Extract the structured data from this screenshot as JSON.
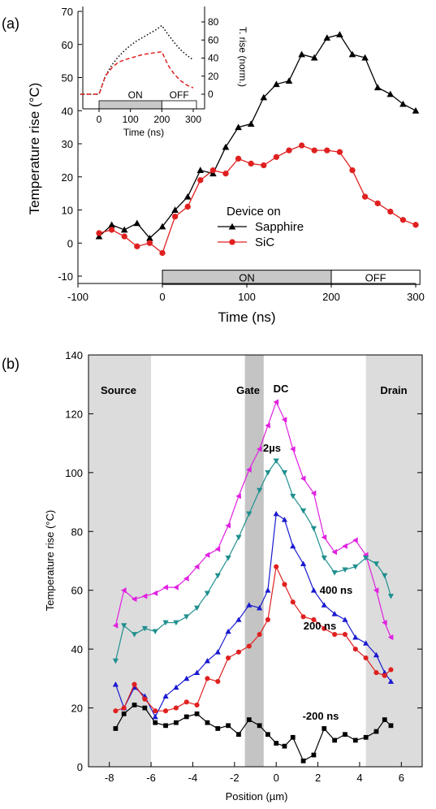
{
  "chart_data": [
    {
      "panel_label": "(a)",
      "type": "line",
      "xlabel": "Time (ns)",
      "ylabel": "Temperature rise (°C)",
      "xlim": [
        -100,
        300
      ],
      "ylim": [
        -12,
        70
      ],
      "xticks": [
        -100,
        0,
        100,
        200,
        300
      ],
      "yticks": [
        -10,
        0,
        10,
        20,
        30,
        40,
        50,
        60,
        70
      ],
      "legend_title": "Device on",
      "legend_placement": "center-right",
      "pulse_bar": {
        "on_label": "ON",
        "off_label": "OFF",
        "on_range": [
          0,
          200
        ],
        "off_range": [
          200,
          305
        ]
      },
      "series": [
        {
          "name": "Sapphire",
          "color": "#000000",
          "marker": "triangle-up",
          "x": [
            -75,
            -60,
            -45,
            -30,
            -15,
            0,
            15,
            30,
            45,
            60,
            75,
            90,
            105,
            120,
            135,
            150,
            165,
            180,
            195,
            210,
            225,
            240,
            255,
            270,
            285,
            300
          ],
          "y": [
            2,
            5.5,
            4,
            6,
            1.5,
            5,
            10,
            14,
            22,
            21,
            29,
            35,
            36,
            44,
            48,
            49,
            57,
            56,
            62,
            63,
            57,
            56,
            47,
            45,
            42,
            40
          ]
        },
        {
          "name": "SiC",
          "color": "#e02020",
          "marker": "circle",
          "x": [
            -75,
            -60,
            -45,
            -30,
            -15,
            0,
            15,
            30,
            45,
            60,
            75,
            90,
            105,
            120,
            135,
            150,
            165,
            180,
            195,
            210,
            225,
            240,
            255,
            270,
            285,
            300
          ],
          "y": [
            3,
            4,
            2,
            -1,
            0,
            -3,
            8,
            11,
            19,
            22,
            21,
            25.5,
            24,
            23.5,
            26,
            28,
            29.5,
            28,
            28,
            27.5,
            22,
            14,
            12,
            9.5,
            7,
            5.5
          ]
        }
      ],
      "inset": {
        "xlabel": "Time (ns)",
        "ylabel": "T. rise (norm.)",
        "xlim": [
          -60,
          310
        ],
        "ylim": [
          -15,
          90
        ],
        "xticks": [
          0,
          100,
          200,
          300
        ],
        "yticks": [
          0,
          20,
          40,
          60,
          80
        ],
        "pulse_bar": {
          "on_label": "ON",
          "off_label": "OFF"
        },
        "series": [
          {
            "color": "#000000",
            "style": "dotted",
            "x": [
              -60,
              -40,
              -20,
              0,
              20,
              40,
              60,
              80,
              100,
              120,
              140,
              160,
              180,
              200,
              220,
              240,
              260,
              280,
              300
            ],
            "y": [
              0,
              0,
              0,
              0,
              20,
              32,
              41,
              48,
              54,
              59,
              63,
              67,
              71,
              76,
              66,
              57,
              49,
              43,
              38
            ]
          },
          {
            "color": "#e02020",
            "style": "dashed",
            "x": [
              -60,
              -40,
              -20,
              0,
              20,
              40,
              60,
              80,
              100,
              120,
              140,
              160,
              180,
              200,
              220,
              240,
              260,
              280,
              300
            ],
            "y": [
              0,
              0,
              0,
              0,
              20,
              29,
              35,
              38,
              40,
              42,
              44,
              45,
              46,
              47,
              32,
              22,
              15,
              10,
              7
            ]
          }
        ]
      }
    },
    {
      "panel_label": "(b)",
      "type": "line",
      "xlabel": "Position (µm)",
      "ylabel": "Temperature rise (°C)",
      "xlim": [
        -9,
        7
      ],
      "ylim": [
        0,
        140
      ],
      "xticks": [
        -8,
        -6,
        -4,
        -2,
        0,
        2,
        4,
        6
      ],
      "yticks": [
        0,
        20,
        40,
        60,
        80,
        100,
        120,
        140
      ],
      "regions": [
        {
          "label": "Source",
          "range": [
            -9,
            -6
          ]
        },
        {
          "label": "Gate",
          "range": [
            -1.5,
            -0.6
          ]
        },
        {
          "label": "Drain",
          "range": [
            4.3,
            7
          ]
        }
      ],
      "series": [
        {
          "name": "DC",
          "color": "#e020e0",
          "marker": "triangle-left",
          "x": [
            -7.7,
            -7.3,
            -6.8,
            -6.3,
            -5.8,
            -5.3,
            -4.8,
            -4.3,
            -3.8,
            -3.3,
            -2.8,
            -2.3,
            -1.8,
            -1.3,
            -0.8,
            -0.4,
            0,
            0.4,
            0.8,
            1.3,
            1.8,
            2.3,
            2.8,
            3.3,
            3.8,
            4.3,
            4.8,
            5.2,
            5.5
          ],
          "y": [
            48,
            60,
            57,
            58,
            59,
            61,
            61,
            64,
            68,
            72,
            74,
            82,
            92,
            101,
            108,
            116,
            124,
            118,
            108,
            98,
            93,
            78,
            73,
            75,
            77,
            72,
            60,
            49,
            44
          ]
        },
        {
          "name": "2µs",
          "color": "#1f8f8f",
          "marker": "triangle-down",
          "x": [
            -7.7,
            -7.3,
            -6.8,
            -6.3,
            -5.8,
            -5.3,
            -4.8,
            -4.3,
            -3.8,
            -3.3,
            -2.8,
            -2.3,
            -1.8,
            -1.3,
            -0.8,
            -0.4,
            0,
            0.4,
            0.8,
            1.3,
            1.8,
            2.3,
            2.8,
            3.3,
            3.8,
            4.3,
            4.8,
            5.2,
            5.5
          ],
          "y": [
            36,
            48,
            45,
            47,
            46,
            49,
            49,
            51,
            54,
            59,
            65,
            71,
            78,
            86,
            94,
            100,
            104,
            100,
            92,
            87,
            81,
            71,
            66,
            67,
            68,
            71,
            69,
            65,
            58
          ]
        },
        {
          "name": "400 ns",
          "color": "#1a1ad0",
          "marker": "triangle-up",
          "x": [
            -7.7,
            -7.3,
            -6.8,
            -6.3,
            -5.8,
            -5.3,
            -4.8,
            -4.3,
            -3.8,
            -3.3,
            -2.8,
            -2.3,
            -1.8,
            -1.3,
            -0.8,
            -0.4,
            0,
            0.4,
            0.8,
            1.3,
            1.8,
            2.3,
            2.8,
            3.3,
            3.8,
            4.3,
            4.8,
            5.2,
            5.5
          ],
          "y": [
            28,
            20,
            27,
            24,
            17,
            24,
            27,
            30,
            32,
            36,
            39,
            46,
            50,
            55,
            54,
            60,
            86,
            84,
            75,
            69,
            60,
            55,
            52,
            50,
            44,
            42,
            38,
            32,
            29
          ]
        },
        {
          "name": "200 ns",
          "color": "#e02020",
          "marker": "circle",
          "x": [
            -7.7,
            -7.3,
            -6.8,
            -6.3,
            -5.8,
            -5.3,
            -4.8,
            -4.3,
            -3.8,
            -3.3,
            -2.8,
            -2.3,
            -1.8,
            -1.3,
            -0.8,
            -0.4,
            0,
            0.4,
            0.8,
            1.3,
            1.8,
            2.3,
            2.8,
            3.3,
            3.8,
            4.3,
            4.8,
            5.2,
            5.5
          ],
          "y": [
            19,
            20,
            28,
            23,
            19,
            19,
            20,
            22,
            21,
            30,
            29,
            37,
            39,
            41,
            45,
            50,
            68,
            62,
            56,
            51,
            50,
            47,
            45,
            45,
            40,
            37,
            32,
            31,
            33
          ]
        },
        {
          "name": "-200 ns",
          "color": "#000000",
          "marker": "square",
          "x": [
            -7.7,
            -7.3,
            -6.8,
            -6.3,
            -5.8,
            -5.3,
            -4.8,
            -4.3,
            -3.8,
            -3.3,
            -2.8,
            -2.3,
            -1.8,
            -1.3,
            -0.8,
            -0.4,
            0,
            0.4,
            0.8,
            1.3,
            1.8,
            2.3,
            2.8,
            3.3,
            3.8,
            4.3,
            4.8,
            5.2,
            5.5
          ],
          "y": [
            13,
            18,
            21,
            20,
            15,
            14,
            15,
            17,
            18,
            15,
            13,
            14,
            11,
            16,
            14,
            11,
            8,
            7,
            10,
            2,
            4,
            13,
            9,
            11,
            9,
            10,
            12,
            16,
            14
          ]
        }
      ]
    }
  ]
}
